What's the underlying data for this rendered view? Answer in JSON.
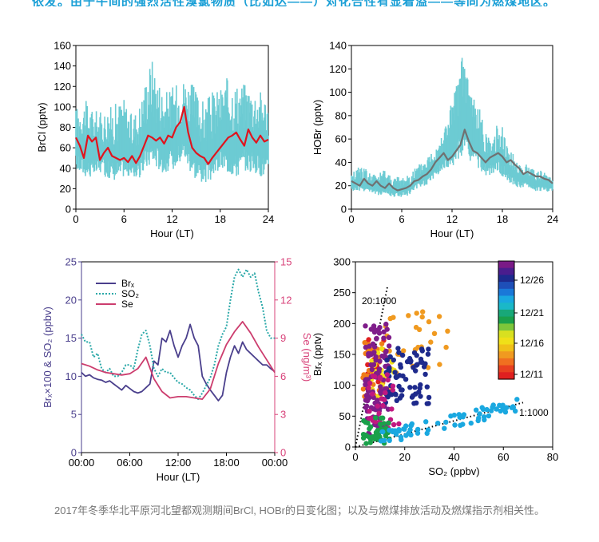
{
  "banner": {
    "text": "依发。由于午间的强烈活性溴氯物质（比如达——）对化合性有显着溢——等同为燃煤地区。",
    "color": "#1a9fd6"
  },
  "caption": "2017年冬季华北平原河北望都观测期间BrCl, HOBr的日变化图；以及与燃煤排放活动及燃煤指示剂相关性。",
  "colors": {
    "band": "#6ccbd3",
    "red": "#e0141e",
    "gray_line": "#707070",
    "brx": "#4a3f8c",
    "so2": "#2aa8a8",
    "se": "#cc3d6e",
    "right_axis": "#d8437a",
    "left_axis": "#4a3f8c"
  },
  "chart_data": [
    {
      "id": "brcl",
      "type": "line",
      "title": "",
      "xlabel": "Hour (LT)",
      "ylabel": "BrCl (pptv)",
      "xlim": [
        0,
        24
      ],
      "ylim": [
        0,
        160
      ],
      "x_ticks": [
        "0",
        "6",
        "12",
        "18",
        "24"
      ],
      "y_ticks": [
        "0",
        "20",
        "40",
        "60",
        "80",
        "100",
        "120",
        "140",
        "160"
      ],
      "band": {
        "x": [
          0,
          1,
          2,
          3,
          4,
          5,
          6,
          7,
          8,
          9,
          9.5,
          10,
          11,
          12,
          13,
          13.5,
          14,
          15,
          16,
          17,
          18,
          19,
          20,
          21,
          22,
          23,
          24
        ],
        "low": [
          38,
          32,
          30,
          35,
          30,
          28,
          32,
          30,
          30,
          40,
          42,
          40,
          35,
          38,
          45,
          50,
          40,
          28,
          25,
          28,
          38,
          35,
          30,
          38,
          35,
          32,
          30
        ],
        "high": [
          100,
          108,
          100,
          95,
          100,
          104,
          110,
          92,
          105,
          140,
          150,
          135,
          115,
          120,
          125,
          130,
          128,
          118,
          105,
          115,
          120,
          130,
          125,
          125,
          120,
          118,
          110
        ]
      },
      "series": [
        {
          "x": [
            0,
            0.5,
            1,
            1.5,
            2,
            2.5,
            3,
            3.5,
            4,
            4.5,
            5,
            5.5,
            6,
            6.5,
            7,
            7.5,
            8,
            8.5,
            9,
            9.5,
            10,
            10.5,
            11,
            11.5,
            12,
            12.5,
            13,
            13.5,
            14,
            14.5,
            15,
            15.5,
            16,
            16.5,
            17,
            17.5,
            18,
            18.5,
            19,
            19.5,
            20,
            20.5,
            21,
            21.5,
            22,
            22.5,
            23,
            23.5,
            24
          ],
          "values": [
            70,
            62,
            50,
            72,
            66,
            70,
            48,
            55,
            60,
            52,
            50,
            48,
            50,
            46,
            52,
            45,
            52,
            62,
            72,
            70,
            67,
            70,
            64,
            72,
            70,
            80,
            85,
            100,
            75,
            60,
            55,
            52,
            50,
            44,
            50,
            55,
            60,
            65,
            70,
            72,
            75,
            68,
            62,
            78,
            70,
            65,
            72,
            66,
            68
          ]
        }
      ]
    },
    {
      "id": "hobr",
      "type": "line",
      "title": "",
      "xlabel": "Hour (LT)",
      "ylabel": "HOBr (pptv)",
      "xlim": [
        0,
        24
      ],
      "ylim": [
        0,
        140
      ],
      "x_ticks": [
        "0",
        "6",
        "12",
        "18",
        "24"
      ],
      "y_ticks": [
        "0",
        "20",
        "40",
        "60",
        "80",
        "100",
        "120",
        "140"
      ],
      "band": {
        "x": [
          0,
          1,
          2,
          3,
          4,
          5,
          6,
          7,
          8,
          9,
          10,
          11,
          12,
          12.5,
          13,
          13.5,
          14,
          15,
          16,
          17,
          17.5,
          18,
          18.5,
          19,
          20,
          21,
          22,
          23,
          24
        ],
        "low": [
          15,
          15,
          15,
          12,
          12,
          10,
          10,
          12,
          18,
          20,
          28,
          32,
          35,
          40,
          45,
          42,
          40,
          35,
          28,
          30,
          32,
          28,
          25,
          22,
          18,
          18,
          15,
          15,
          15
        ],
        "high": [
          30,
          40,
          32,
          30,
          35,
          28,
          28,
          32,
          38,
          45,
          55,
          70,
          95,
          105,
          130,
          135,
          112,
          92,
          70,
          60,
          78,
          75,
          58,
          50,
          40,
          38,
          35,
          32,
          30
        ]
      },
      "series": [
        {
          "x": [
            0,
            0.5,
            1,
            1.5,
            2,
            2.5,
            3,
            3.5,
            4,
            4.5,
            5,
            5.5,
            6,
            6.5,
            7,
            7.5,
            8,
            8.5,
            9,
            9.5,
            10,
            10.5,
            11,
            11.5,
            12,
            12.5,
            13,
            13.5,
            14,
            14.5,
            15,
            15.5,
            16,
            16.5,
            17,
            17.5,
            18,
            18.5,
            19,
            19.5,
            20,
            20.5,
            21,
            21.5,
            22,
            22.5,
            23,
            23.5,
            24
          ],
          "values": [
            24,
            22,
            20,
            26,
            22,
            20,
            24,
            20,
            18,
            22,
            18,
            16,
            17,
            18,
            20,
            24,
            25,
            28,
            30,
            34,
            40,
            44,
            48,
            42,
            45,
            50,
            55,
            68,
            58,
            50,
            48,
            44,
            40,
            44,
            46,
            48,
            45,
            40,
            42,
            38,
            35,
            30,
            32,
            30,
            28,
            28,
            26,
            25,
            22
          ]
        }
      ]
    },
    {
      "id": "brx-so2-se",
      "type": "line",
      "title": "",
      "xlabel": "Hour (LT)",
      "ylabel": "Brₓ×100 & SO₂ (ppbv)",
      "y2label": "Se (ng/m³)",
      "xlim": [
        0,
        24
      ],
      "ylim": [
        0,
        25
      ],
      "y2lim": [
        0,
        15
      ],
      "x_ticks": [
        "00:00",
        "06:00",
        "12:00",
        "18:00",
        "00:00"
      ],
      "y_ticks": [
        "0",
        "5",
        "10",
        "15",
        "20",
        "25"
      ],
      "y2_ticks": [
        "0",
        "3",
        "6",
        "9",
        "12",
        "15"
      ],
      "legend_position": "top-left",
      "series": [
        {
          "name": "Brₓ",
          "axis": "left",
          "x": [
            0,
            0.5,
            1,
            1.5,
            2,
            2.5,
            3,
            3.5,
            4,
            4.5,
            5,
            5.5,
            6,
            6.5,
            7,
            7.5,
            8,
            8.5,
            9,
            9.5,
            10,
            10.5,
            11,
            11.5,
            12,
            12.5,
            13,
            13.5,
            14,
            14.5,
            15,
            15.5,
            16,
            16.5,
            17,
            17.5,
            18,
            18.5,
            19,
            19.5,
            20,
            20.5,
            21,
            21.5,
            22,
            22.5,
            23,
            23.5,
            24
          ],
          "values": [
            10.5,
            10,
            10.2,
            9.8,
            9.6,
            9.5,
            9.2,
            9.4,
            9,
            8.6,
            8.2,
            8.8,
            8.4,
            8,
            7.8,
            8,
            8.5,
            9,
            12,
            11.5,
            15,
            14.5,
            16,
            14,
            12.5,
            14,
            15,
            16.8,
            15,
            14,
            10,
            9,
            8.2,
            7.5,
            6.8,
            7.5,
            10.5,
            12.5,
            14,
            13,
            14.5,
            13.5,
            13,
            12.5,
            12,
            11.5,
            11.5,
            11,
            10.6
          ]
        },
        {
          "name": "SO₂",
          "axis": "left",
          "x": [
            0,
            0.5,
            1,
            1.5,
            2,
            2.5,
            3,
            3.5,
            4,
            4.5,
            5,
            5.5,
            6,
            6.5,
            7,
            7.5,
            8,
            8.5,
            9,
            9.5,
            10,
            10.5,
            11,
            11.5,
            12,
            12.5,
            13,
            13.5,
            14,
            14.5,
            15,
            15.5,
            16,
            16.5,
            17,
            17.5,
            18,
            18.5,
            19,
            19.5,
            20,
            20.5,
            21,
            21.5,
            22,
            22.5,
            23,
            23.5,
            24
          ],
          "values": [
            15.5,
            14.5,
            14.5,
            12.5,
            13,
            11,
            10.5,
            11,
            10,
            10,
            10.5,
            11.5,
            11.5,
            11,
            13.5,
            15.5,
            16,
            14,
            11,
            10,
            11,
            10.5,
            10.5,
            9.8,
            9.2,
            9,
            8.5,
            8.2,
            7.5,
            7,
            7.8,
            8.8,
            9.8,
            11.5,
            14,
            15.5,
            16.5,
            20,
            23,
            24,
            23,
            24,
            23,
            23.5,
            21,
            19,
            16,
            15,
            15
          ]
        },
        {
          "name": "Se",
          "axis": "right",
          "x": [
            0,
            1,
            2,
            3,
            4,
            5,
            6,
            7,
            8,
            9,
            10,
            11,
            12,
            13,
            14,
            15,
            16,
            17,
            18,
            19,
            20,
            21,
            22,
            23,
            24
          ],
          "values": [
            7,
            6.8,
            6.5,
            6.3,
            6.2,
            6.1,
            6.2,
            6.6,
            7.5,
            5.8,
            4.8,
            4.3,
            4.4,
            4.4,
            4.3,
            4.2,
            5,
            7,
            8.5,
            9.5,
            10.3,
            9.4,
            8.3,
            7.3,
            6.3
          ]
        }
      ]
    },
    {
      "id": "brx-vs-so2",
      "type": "scatter",
      "title": "",
      "xlabel": "SO₂ (ppbv)",
      "ylabel": "Brₓ (pptv)",
      "xlim": [
        0,
        80
      ],
      "ylim": [
        0,
        300
      ],
      "x_ticks": [
        "0",
        "20",
        "40",
        "60",
        "80"
      ],
      "y_ticks": [
        "0",
        "50",
        "100",
        "150",
        "200",
        "250",
        "300"
      ],
      "colorbar": {
        "labels": [
          "12/26",
          "12/21",
          "12/16",
          "12/11"
        ]
      },
      "annotations": [
        "20:1000",
        "1:1000"
      ],
      "reference_lines": [
        {
          "label": "20:1000",
          "slope": 20
        },
        {
          "label": "1:1000",
          "slope": 1
        }
      ],
      "clusters": [
        {
          "color": "#e02020",
          "x": [
            4,
            12
          ],
          "y": [
            100,
            175
          ],
          "n": 22
        },
        {
          "color": "#f07d18",
          "x": [
            3,
            12
          ],
          "y": [
            80,
            170
          ],
          "n": 40
        },
        {
          "color": "#f09a20",
          "x": [
            12,
            40
          ],
          "y": [
            120,
            220
          ],
          "n": 28
        },
        {
          "color": "#f0e018",
          "x": [
            6,
            16
          ],
          "y": [
            80,
            160
          ],
          "n": 30
        },
        {
          "color": "#7f1d8a",
          "x": [
            4,
            14
          ],
          "y": [
            20,
            200
          ],
          "n": 110
        },
        {
          "color": "#1e2a8c",
          "x": [
            12,
            30
          ],
          "y": [
            70,
            160
          ],
          "n": 70
        },
        {
          "color": "#c01880",
          "x": [
            4,
            18
          ],
          "y": [
            30,
            120
          ],
          "n": 30
        },
        {
          "color": "#1aa04a",
          "x": [
            3,
            14
          ],
          "y": [
            5,
            50
          ],
          "n": 40
        },
        {
          "color": "#1aa8e0",
          "x": [
            10,
            66
          ],
          "y": [
            10,
            75
          ],
          "n": 70
        }
      ]
    }
  ]
}
